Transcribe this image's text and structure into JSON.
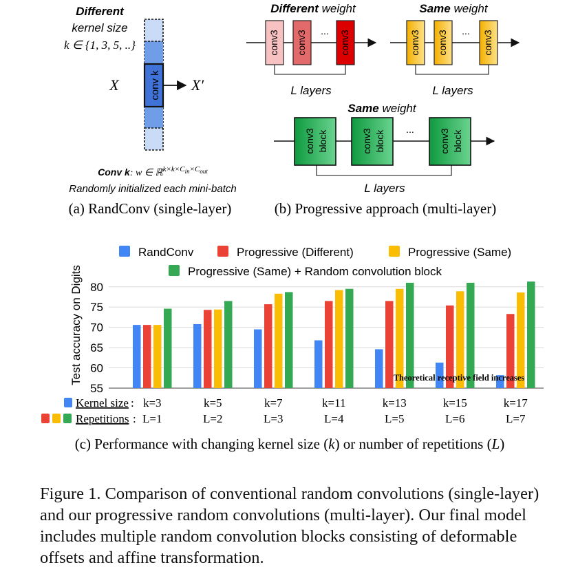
{
  "panel_a": {
    "heading_bold": "Different",
    "heading_line2": "kernel size",
    "k_set": "k ∈ {1, 3, 5, ..}",
    "input_label": "X",
    "output_label": "X′",
    "block_label": "conv k",
    "formula_bold": "Conv k",
    "formula_rest": ": w ∈ ℝ",
    "formula_sup": "k×k×C",
    "formula_sub_in": "in",
    "formula_times": "×C",
    "formula_sub_out": "out",
    "note": "Randomly initialized each mini-batch",
    "caption": "(a) RandConv (single-layer)"
  },
  "panel_b": {
    "diff_bold": "Different",
    "diff_rest": " weight",
    "same_bold": "Same",
    "same_rest": " weight",
    "block_bold": "Same",
    "block_rest": " weight",
    "conv_label": "conv3",
    "block_label_1": "conv3",
    "block_label_2": "block",
    "ellipsis": "...",
    "layers_label": "L layers",
    "caption": "(b) Progressive approach (multi-layer)",
    "colors": {
      "diff": [
        "#f8c2c2",
        "#e36a6a",
        "#dd0000"
      ],
      "same": "#f7b800",
      "block": "#13a34a"
    }
  },
  "chart_data": {
    "type": "bar",
    "ylabel": "Test accuracy on Digits",
    "ylim": [
      55,
      82
    ],
    "yticks": [
      55,
      60,
      65,
      70,
      75,
      80
    ],
    "categories": [
      "k=3",
      "k=5",
      "k=7",
      "k=11",
      "k=13",
      "k=15",
      "k=17"
    ],
    "repetitions": [
      "L=1",
      "L=2",
      "L=3",
      "L=4",
      "L=5",
      "L=6",
      "L=7"
    ],
    "series": [
      {
        "name": "RandConv",
        "color": "#4285f4",
        "values": [
          70.6,
          70.8,
          69.5,
          66.8,
          64.6,
          61.3,
          58.2
        ]
      },
      {
        "name": "Progressive (Different)",
        "color": "#ea4335",
        "values": [
          70.6,
          74.3,
          75.7,
          76.5,
          76.5,
          75.4,
          73.3
        ]
      },
      {
        "name": "Progressive (Same)",
        "color": "#fbbc04",
        "values": [
          70.6,
          74.4,
          78.3,
          79.2,
          79.5,
          78.9,
          78.6
        ]
      },
      {
        "name": "Progressive (Same) + Random convolution block",
        "color": "#34a853",
        "values": [
          74.6,
          76.5,
          78.7,
          79.5,
          81.0,
          81.0,
          81.3
        ]
      }
    ],
    "annotation": "Theoretical receptive field increases",
    "row_label_kernel": "Kernel size",
    "row_label_reps": "Repetitions",
    "caption_pre": "(c) Performance with changing kernel size (",
    "caption_k": "k",
    "caption_mid": ") or number of repetitions (",
    "caption_L": "L",
    "caption_post": ")"
  },
  "figure_caption": "Figure 1. Comparison of conventional random convolutions (single-layer) and our progressive random convolutions (multi-layer). Our final model includes multiple random convolution blocks consisting of deformable offsets and affine transformation."
}
